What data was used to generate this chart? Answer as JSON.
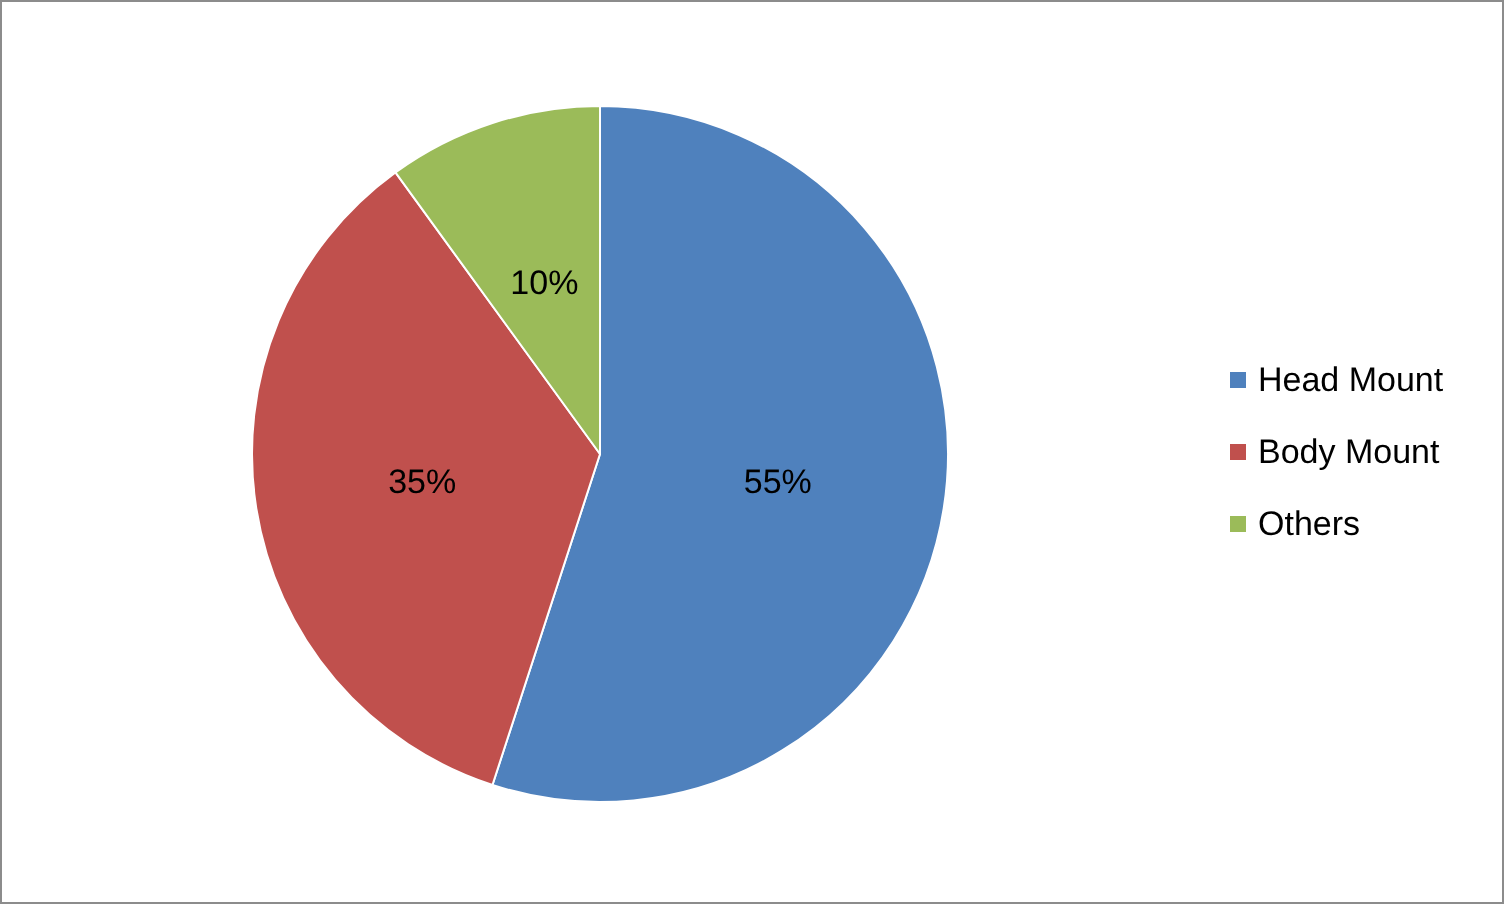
{
  "chart_data": {
    "type": "pie",
    "categories": [
      "Head Mount",
      "Body Mount",
      "Others"
    ],
    "values": [
      55,
      35,
      10
    ],
    "colors": [
      "#4f81bd",
      "#c0504d",
      "#9bbb59"
    ],
    "value_labels": [
      "55%",
      "35%",
      "10%"
    ],
    "legend": "right"
  }
}
